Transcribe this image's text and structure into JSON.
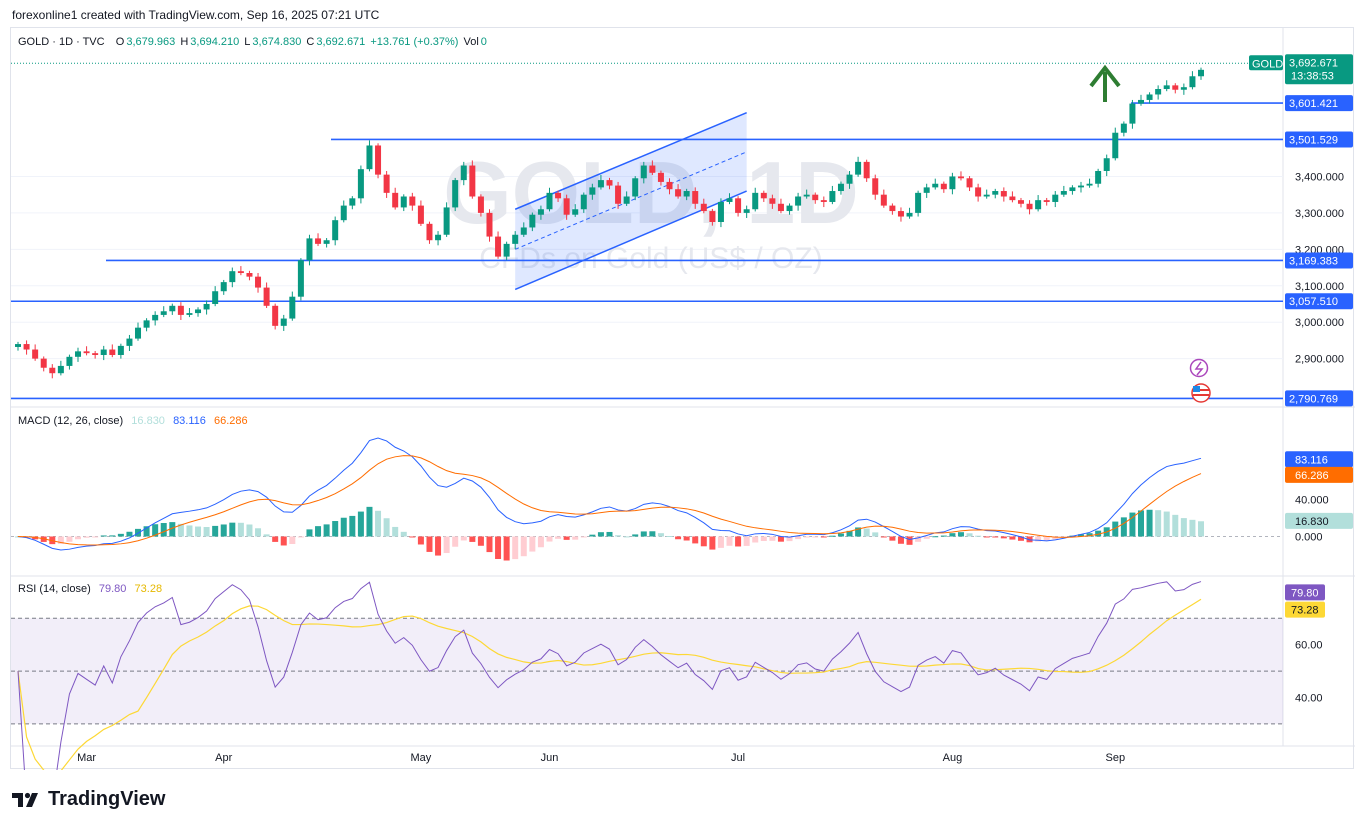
{
  "header": {
    "creator": "forexonline1 created with TradingView.com, Sep 16, 2025 07:21 UTC"
  },
  "legend": {
    "symbol": "GOLD · 1D · TVC",
    "open_label": "O",
    "open": "3,679.963",
    "high_label": "H",
    "high": "3,694.210",
    "low_label": "L",
    "low": "3,674.830",
    "close_label": "C",
    "close": "3,692.671",
    "change": "+13.761 (+0.37%)",
    "vol_label": "Vol",
    "vol": "0"
  },
  "watermark": {
    "title": "GOLD, 1D",
    "subtitle": "CFDs on Gold (US$ / OZ)"
  },
  "macd_legend": {
    "label": "MACD (12, 26, close)",
    "hist": "16.830",
    "macd": "83.116",
    "signal": "66.286"
  },
  "rsi_legend": {
    "label": "RSI (14, close)",
    "rsi": "79.80",
    "ma": "73.28"
  },
  "brand": {
    "name": "TradingView"
  },
  "colors": {
    "up": "#089981",
    "down": "#f23645",
    "level": "#2962ff",
    "macd": "#2962ff",
    "signal": "#ff6d00",
    "rsi": "#7e57c2",
    "rsi_ma": "#fdd835",
    "arrow": "#2e7d32"
  },
  "icons": [
    "lightning-icon",
    "us-flag-icon",
    "up-arrow-icon"
  ],
  "chart_data": [
    {
      "type": "candlestick",
      "symbol": "GOLD",
      "title": "GOLD, 1D",
      "x_ticks": [
        "Mar",
        "Apr",
        "May",
        "Jun",
        "Jul",
        "Aug",
        "Sep"
      ],
      "y_ticks": [
        "2,900.000",
        "3,000.000",
        "3,100.000",
        "3,200.000",
        "3,300.000",
        "3,400.000"
      ],
      "ylim": [
        2770,
        3780
      ],
      "last_price": {
        "symbol": "GOLD",
        "value": "3,692.671",
        "countdown": "13:38:53"
      },
      "horizontal_levels": [
        {
          "value": 3601.421,
          "label": "3,601.421"
        },
        {
          "value": 3501.529,
          "label": "3,501.529"
        },
        {
          "value": 3169.383,
          "label": "3,169.383"
        },
        {
          "value": 3057.51,
          "label": "3,057.510"
        },
        {
          "value": 2790.769,
          "label": "2,790.769"
        }
      ],
      "channel": {
        "from": "May 15",
        "to": "Jun 24",
        "lower": [
          3090,
          3360
        ],
        "upper": [
          3310,
          3575
        ]
      },
      "series": [
        {
          "period": "Feb 24 – Mar 7",
          "values": [
            2940,
            2925,
            2900,
            2875,
            2860,
            2880,
            2905,
            2920,
            2915,
            2910,
            2925
          ]
        },
        {
          "period": "Mar 10 – Apr 2",
          "values": [
            2910,
            2935,
            2955,
            2985,
            3005,
            3020,
            3030,
            3045,
            3020,
            3025,
            3035,
            3050,
            3085,
            3110,
            3140,
            3135,
            3125
          ]
        },
        {
          "period": "Apr 3 – Apr 22",
          "values": [
            3095,
            3045,
            2990,
            3010,
            3070,
            3170,
            3230,
            3215,
            3225,
            3280,
            3320,
            3340,
            3420,
            3485,
            3405
          ]
        },
        {
          "period": "Apr 23 – May 16",
          "values": [
            3355,
            3315,
            3345,
            3320,
            3270,
            3225,
            3240,
            3315,
            3390,
            3430,
            3345,
            3300,
            3235,
            3180,
            3215,
            3240
          ]
        },
        {
          "period": "May 19 – Jun 13",
          "values": [
            3260,
            3295,
            3310,
            3355,
            3340,
            3295,
            3310,
            3350,
            3370,
            3390,
            3375,
            3325,
            3345,
            3395,
            3430,
            3410,
            3385,
            3365,
            3345,
            3360
          ]
        },
        {
          "period": "Jun 16 – Jul 15",
          "values": [
            3325,
            3305,
            3275,
            3330,
            3340,
            3300,
            3310,
            3355,
            3340,
            3325,
            3305,
            3320,
            3345,
            3350,
            3335,
            3330,
            3360,
            3380,
            3405,
            3440,
            3395
          ]
        },
        {
          "period": "Jul 16 – Aug 8",
          "values": [
            3350,
            3320,
            3305,
            3290,
            3300,
            3355,
            3370,
            3380,
            3365,
            3400,
            3395,
            3370,
            3345,
            3350,
            3360,
            3345,
            3335,
            3325,
            3310,
            3335
          ]
        },
        {
          "period": "Aug 11 – Aug 29",
          "values": [
            3330,
            3350,
            3360,
            3370,
            3375,
            3380,
            3415,
            3450,
            3520,
            3545,
            3600,
            3610,
            3625,
            3640
          ]
        },
        {
          "period": "Sep 1 – Sep 15",
          "values": [
            3650,
            3638,
            3645,
            3675,
            3692.671
          ]
        }
      ]
    },
    {
      "type": "line",
      "title": "MACD (12, 26, close)",
      "y_ticks": [
        "40.000",
        "0.000"
      ],
      "series": [
        {
          "name": "MACD",
          "last": 83.116
        },
        {
          "name": "Signal",
          "last": 66.286
        },
        {
          "name": "Histogram",
          "last": 16.83
        }
      ]
    },
    {
      "type": "line",
      "title": "RSI (14, close)",
      "y_ticks": [
        "60.00",
        "40.00"
      ],
      "bands": [
        70,
        50,
        30
      ],
      "series": [
        {
          "name": "RSI",
          "last": 79.8
        },
        {
          "name": "RSI MA",
          "last": 73.28
        }
      ]
    }
  ]
}
